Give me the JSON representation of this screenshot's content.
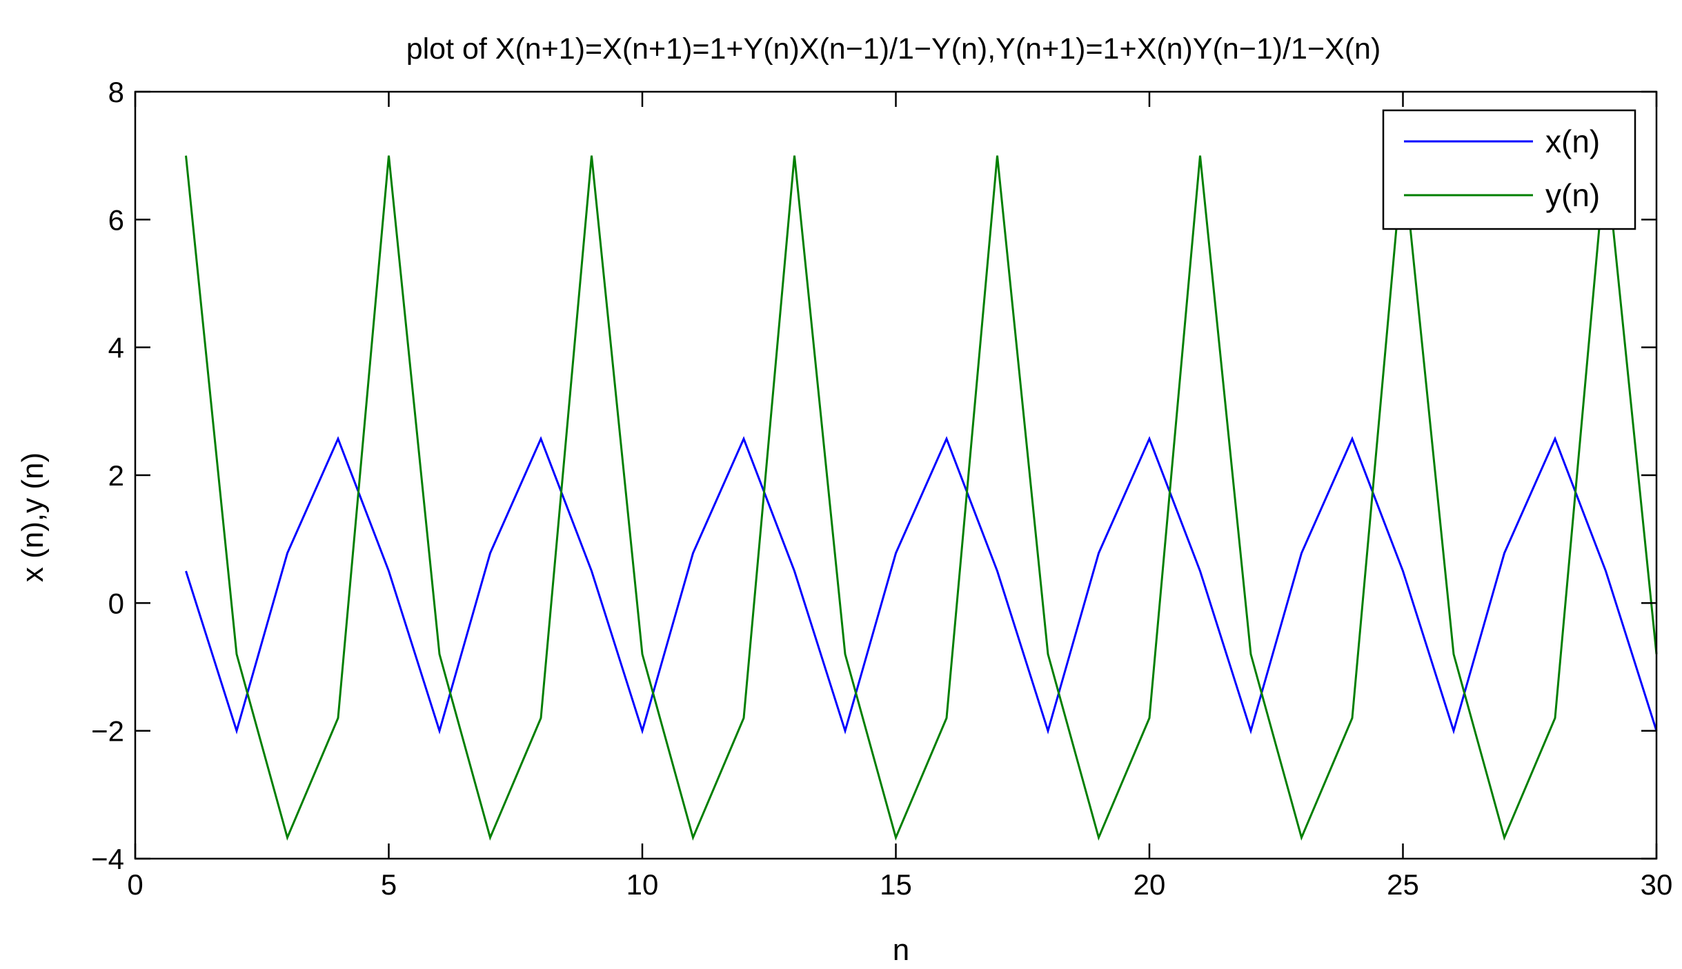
{
  "chart_data": {
    "type": "line",
    "title": "plot of X(n+1)=X(n+1)=1+Y(n)X(n−1)/1−Y(n),Y(n+1)=1+X(n)Y(n−1)/1−X(n)",
    "xlabel": "n",
    "ylabel": "x (n),y (n)",
    "xlim": [
      0,
      30
    ],
    "ylim": [
      -4,
      8
    ],
    "xticks": [
      0,
      5,
      10,
      15,
      20,
      25,
      30
    ],
    "yticks": [
      -4,
      -2,
      0,
      2,
      4,
      6,
      8
    ],
    "xtick_labels": [
      "0",
      "5",
      "10",
      "15",
      "20",
      "25",
      "30"
    ],
    "ytick_labels": [
      "−4",
      "−2",
      "0",
      "2",
      "4",
      "6",
      "8"
    ],
    "grid": false,
    "legend_position": "top-right",
    "x": [
      1,
      2,
      3,
      4,
      5,
      6,
      7,
      8,
      9,
      10,
      11,
      12,
      13,
      14,
      15,
      16,
      17,
      18,
      19,
      20,
      21,
      22,
      23,
      24,
      25,
      26,
      27,
      28,
      29,
      30
    ],
    "series": [
      {
        "name": "x(n)",
        "color": "#0000ff",
        "values": [
          0.5,
          -2,
          0.78,
          2.57,
          0.5,
          -2,
          0.78,
          2.57,
          0.5,
          -2,
          0.78,
          2.57,
          0.5,
          -2,
          0.78,
          2.57,
          0.5,
          -2,
          0.78,
          2.57,
          0.5,
          -2,
          0.78,
          2.57,
          0.5,
          -2,
          0.78,
          2.57,
          0.5,
          -2
        ]
      },
      {
        "name": "y(n)",
        "color": "#007f00",
        "values": [
          7,
          -0.8,
          -3.67,
          -1.8,
          7,
          -0.8,
          -3.67,
          -1.8,
          7,
          -0.8,
          -3.67,
          -1.8,
          7,
          -0.8,
          -3.67,
          -1.8,
          7,
          -0.8,
          -3.67,
          -1.8,
          7,
          -0.8,
          -3.67,
          -1.8,
          7,
          -0.8,
          -3.67,
          -1.8,
          7,
          -0.8
        ]
      }
    ]
  }
}
